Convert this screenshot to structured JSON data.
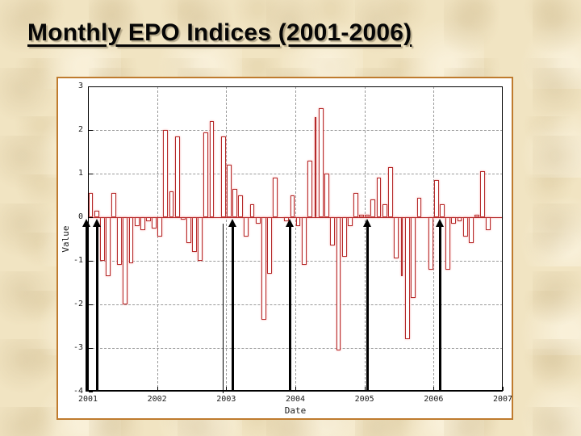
{
  "slide": {
    "title": "Monthly EPO Indices (2001-2006)"
  },
  "chart_data": {
    "type": "bar",
    "title": "Monthly EPO Indices (2001-2006)",
    "xlabel": "Date",
    "ylabel": "Value",
    "xlim": [
      2001,
      2007
    ],
    "ylim": [
      -4,
      3
    ],
    "grid": true,
    "x_tick_years": [
      2001,
      2002,
      2003,
      2004,
      2005,
      2006,
      2007
    ],
    "x_tick_labels": [
      "2001",
      "2002",
      "2003",
      "2004",
      "2005",
      "2006",
      "2007"
    ],
    "y_tick_values": [
      3,
      2,
      1,
      0,
      -1,
      -2,
      -3,
      -4
    ],
    "y_tick_labels": [
      "3",
      "2",
      "1",
      "0",
      "-1",
      "-2",
      "-3",
      "-4"
    ],
    "bar_edge_color": "#b52a2a",
    "bar_fill_color": "#ffffff",
    "panel_border_color": "#bf7b2e",
    "background_color": "#f1e4c2",
    "narrow_months": [
      39,
      54
    ],
    "series": [
      {
        "name": "Monthly EPO Index",
        "start_year": 2001,
        "interval": "month",
        "values": [
          0.55,
          0.15,
          -1.0,
          -1.35,
          0.55,
          -1.1,
          -2.0,
          -1.05,
          -0.2,
          -0.3,
          -0.1,
          -0.25,
          -0.45,
          2.0,
          0.6,
          1.85,
          -0.05,
          -0.6,
          -0.8,
          -1.0,
          1.95,
          2.2,
          0,
          1.85,
          1.2,
          0.65,
          0.5,
          -0.45,
          0.3,
          -0.15,
          -2.35,
          -1.3,
          0.9,
          0,
          -0.1,
          0.5,
          -0.2,
          -1.1,
          1.3,
          2.3,
          2.5,
          1.0,
          -0.65,
          -3.05,
          -0.9,
          -0.2,
          0.55,
          0.05,
          0.05,
          0.4,
          0.9,
          0.3,
          1.15,
          -0.95,
          -1.35,
          -2.8,
          -1.85,
          0.45,
          0,
          -1.2,
          0.85,
          0.3,
          -1.2,
          -0.15,
          -0.1,
          -0.45,
          -0.6,
          0.05,
          1.05,
          -0.3,
          0,
          0
        ]
      }
    ],
    "annotations": {
      "arrow_color": "#000000",
      "arrows_x_year": [
        2000.98,
        2001.13,
        2003.09,
        2003.92,
        2005.04,
        2006.09
      ],
      "plain_line_x_year": 2002.95
    }
  }
}
